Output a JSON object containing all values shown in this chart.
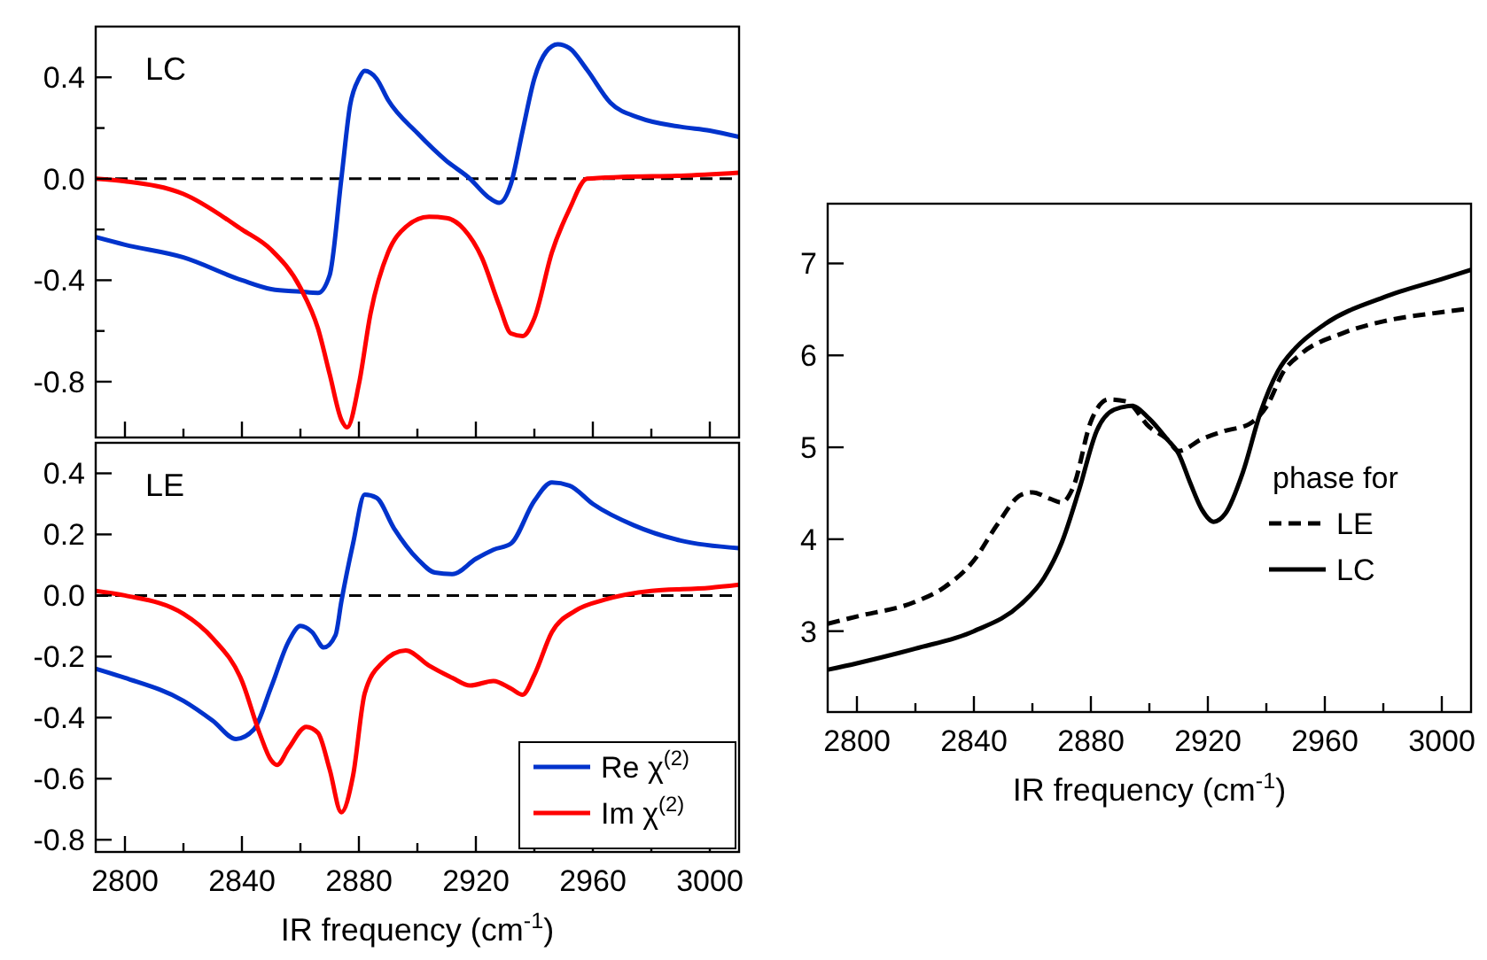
{
  "chart_data": [
    {
      "type": "line",
      "annotations": [
        "LC"
      ],
      "xlim": [
        2790,
        3010
      ],
      "ylim": [
        -1.02,
        0.6
      ],
      "tick_labels": "y",
      "legend": false,
      "grid": false,
      "xticks": [
        2800,
        {
          "value": 2820,
          "label": null
        },
        2840,
        {
          "value": 2860,
          "label": null
        },
        2880,
        {
          "value": 2900,
          "label": null
        },
        2920,
        {
          "value": 2940,
          "label": null
        },
        2960,
        {
          "value": 2980,
          "label": null
        },
        3000
      ],
      "yticks": [
        {
          "value": -0.8,
          "label": "-0.8"
        },
        {
          "value": -0.6,
          "label": null
        },
        {
          "value": -0.4,
          "label": "-0.4"
        },
        {
          "value": -0.2,
          "label": null
        },
        {
          "value": 0,
          "label": "0.0"
        },
        {
          "value": 0.2,
          "label": null
        },
        {
          "value": 0.4,
          "label": "0.4"
        }
      ],
      "ref_lines": [
        {
          "axis": "y",
          "value": 0,
          "color": "#000000",
          "line_style": "dashed"
        }
      ],
      "series": [
        {
          "color": "#0033cc",
          "x": [
            2790,
            2800,
            2820,
            2840,
            2850,
            2860,
            2866,
            2870,
            2874,
            2877,
            2880,
            2882,
            2886,
            2890,
            2900,
            2910,
            2918,
            2924,
            2928,
            2932,
            2936,
            2940,
            2944,
            2948,
            2952,
            2958,
            2966,
            2976,
            2990,
            3000,
            3010
          ],
          "values": [
            -0.23,
            -0.26,
            -0.31,
            -0.4,
            -0.435,
            -0.445,
            -0.45,
            -0.38,
            0.0,
            0.29,
            0.395,
            0.425,
            0.395,
            0.31,
            0.18,
            0.07,
            0.0,
            -0.07,
            -0.095,
            -0.02,
            0.19,
            0.395,
            0.5,
            0.53,
            0.515,
            0.43,
            0.3,
            0.24,
            0.205,
            0.19,
            0.165
          ]
        },
        {
          "color": "#ff0000",
          "x": [
            2790,
            2800,
            2820,
            2840,
            2850,
            2860,
            2866,
            2870,
            2874,
            2876,
            2880,
            2884,
            2890,
            2896,
            2904,
            2910,
            2916,
            2922,
            2928,
            2932,
            2936,
            2940,
            2946,
            2952,
            2958,
            2970,
            2990,
            3010
          ],
          "values": [
            0.0,
            -0.01,
            -0.06,
            -0.2,
            -0.28,
            -0.43,
            -0.59,
            -0.77,
            -0.95,
            -0.98,
            -0.81,
            -0.53,
            -0.29,
            -0.19,
            -0.15,
            -0.155,
            -0.2,
            -0.31,
            -0.5,
            -0.61,
            -0.62,
            -0.55,
            -0.29,
            -0.12,
            0.0,
            0.007,
            0.012,
            0.024
          ]
        }
      ]
    },
    {
      "type": "line",
      "annotations": [
        "LE"
      ],
      "xlabel": "IR frequency (cm$^{-1}$)",
      "xlim": [
        2790,
        3010
      ],
      "ylim": [
        -0.84,
        0.5
      ],
      "legend": "bottom right",
      "grid": false,
      "xticks": [
        2800,
        {
          "value": 2820,
          "label": null
        },
        2840,
        {
          "value": 2860,
          "label": null
        },
        2880,
        {
          "value": 2900,
          "label": null
        },
        2920,
        {
          "value": 2940,
          "label": null
        },
        2960,
        {
          "value": 2980,
          "label": null
        },
        3000
      ],
      "yticks": [
        -0.8,
        -0.6,
        -0.4,
        -0.2,
        {
          "value": 0,
          "label": "0.0"
        },
        0.2,
        0.4
      ],
      "ref_lines": [
        {
          "axis": "y",
          "value": 0,
          "color": "#000000",
          "line_style": "dashed"
        }
      ],
      "series": [
        {
          "name": "Re χ$^{(2)}$",
          "color": "#0033cc",
          "x": [
            2790,
            2800,
            2820,
            2830,
            2838,
            2844,
            2850,
            2856,
            2860,
            2864,
            2868,
            2872,
            2874,
            2878,
            2882,
            2886,
            2892,
            2900,
            2906,
            2912,
            2920,
            2926,
            2932,
            2940,
            2946,
            2952,
            2960,
            2974,
            2990,
            3010
          ],
          "values": [
            -0.24,
            -0.27,
            -0.345,
            -0.41,
            -0.47,
            -0.44,
            -0.3,
            -0.15,
            -0.1,
            -0.12,
            -0.17,
            -0.13,
            -0.02,
            0.17,
            0.33,
            0.32,
            0.22,
            0.12,
            0.075,
            0.07,
            0.12,
            0.15,
            0.17,
            0.31,
            0.37,
            0.36,
            0.3,
            0.23,
            0.18,
            0.155
          ]
        },
        {
          "name": "Im χ$^{(2)}$",
          "color": "#ff0000",
          "x": [
            2790,
            2800,
            2820,
            2830,
            2840,
            2846,
            2850,
            2852,
            2856,
            2862,
            2866,
            2870,
            2874,
            2878,
            2882,
            2888,
            2896,
            2904,
            2912,
            2918,
            2926,
            2932,
            2936,
            2940,
            2946,
            2954,
            2964,
            2980,
            3000,
            3010
          ],
          "values": [
            0.015,
            0.0,
            -0.06,
            -0.14,
            -0.28,
            -0.45,
            -0.54,
            -0.555,
            -0.5,
            -0.43,
            -0.45,
            -0.57,
            -0.71,
            -0.59,
            -0.32,
            -0.22,
            -0.18,
            -0.23,
            -0.27,
            -0.295,
            -0.28,
            -0.305,
            -0.325,
            -0.26,
            -0.12,
            -0.05,
            -0.014,
            0.015,
            0.025,
            0.035
          ]
        }
      ]
    },
    {
      "type": "line",
      "xlabel": "IR frequency (cm$^{-1}$)",
      "legend_title": "phase for",
      "legend": "right",
      "xlim": [
        2790,
        3010
      ],
      "ylim": [
        2.12,
        7.65
      ],
      "grid": false,
      "xticks": [
        2800,
        {
          "value": 2820,
          "label": null
        },
        2840,
        {
          "value": 2860,
          "label": null
        },
        2880,
        {
          "value": 2900,
          "label": null
        },
        2920,
        {
          "value": 2940,
          "label": null
        },
        2960,
        {
          "value": 2980,
          "label": null
        },
        3000
      ],
      "yticks": [
        3,
        4,
        5,
        6,
        7
      ],
      "series": [
        {
          "name": "LE",
          "color": "#000000",
          "line_style": "dashed",
          "x": [
            2790,
            2800,
            2820,
            2830,
            2840,
            2848,
            2856,
            2860,
            2866,
            2870,
            2874,
            2880,
            2886,
            2892,
            2900,
            2906,
            2910,
            2918,
            2926,
            2934,
            2940,
            2946,
            2952,
            2966,
            2980,
            3000,
            3010
          ],
          "values": [
            3.08,
            3.16,
            3.32,
            3.48,
            3.77,
            4.16,
            4.48,
            4.51,
            4.44,
            4.4,
            4.57,
            5.28,
            5.52,
            5.5,
            5.22,
            5.09,
            4.96,
            5.09,
            5.18,
            5.25,
            5.44,
            5.83,
            6.02,
            6.24,
            6.37,
            6.47,
            6.51
          ]
        },
        {
          "name": "LC",
          "color": "#000000",
          "line_style": "solid",
          "x": [
            2790,
            2800,
            2820,
            2840,
            2856,
            2864,
            2870,
            2876,
            2882,
            2888,
            2894,
            2900,
            2906,
            2910,
            2914,
            2918,
            2922,
            2926,
            2932,
            2938,
            2944,
            2950,
            2960,
            2980,
            3000,
            3010
          ],
          "values": [
            2.58,
            2.65,
            2.81,
            3.0,
            3.29,
            3.58,
            3.96,
            4.54,
            5.18,
            5.41,
            5.45,
            5.31,
            5.09,
            4.93,
            4.61,
            4.32,
            4.19,
            4.28,
            4.73,
            5.38,
            5.83,
            6.08,
            6.34,
            6.63,
            6.83,
            6.93
          ]
        }
      ]
    }
  ]
}
